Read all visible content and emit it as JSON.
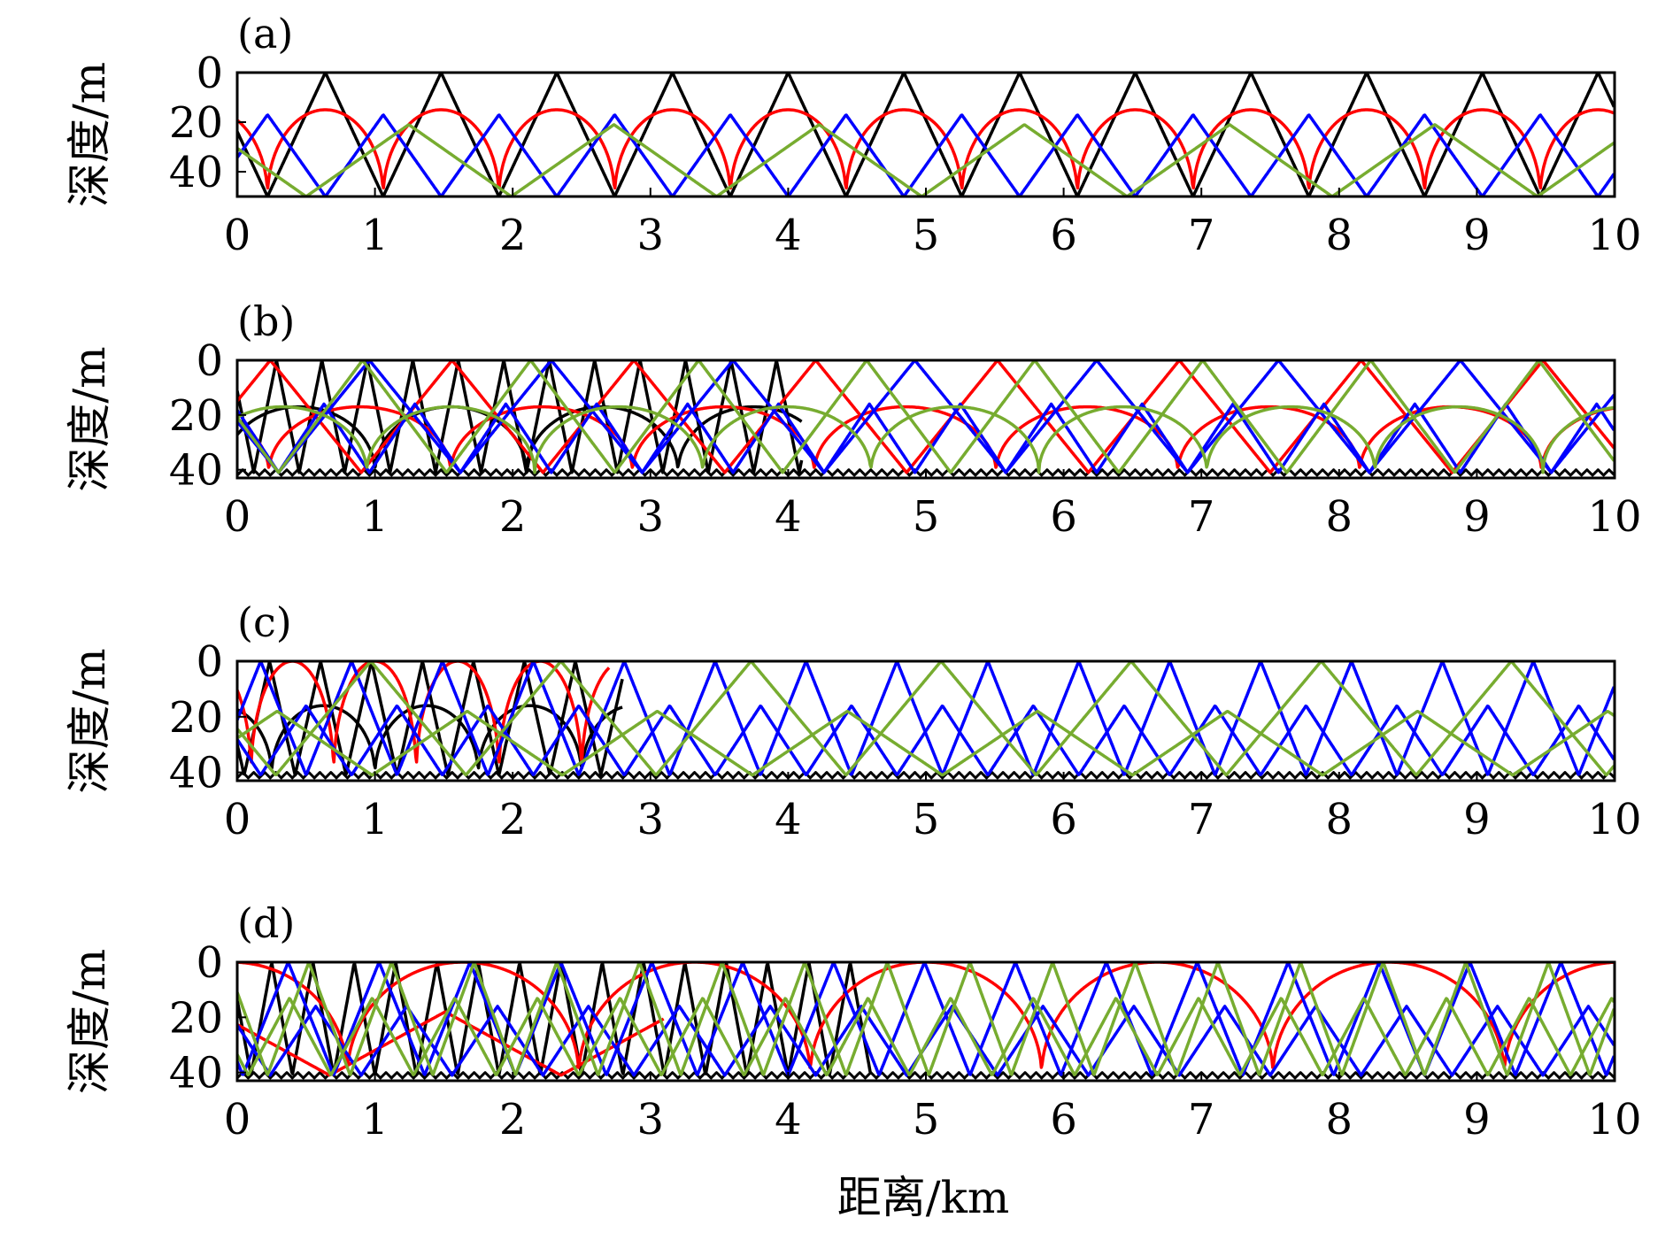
{
  "figure": {
    "xlabel": "距离/km",
    "colors": {
      "black": "#000000",
      "red": "#ff0000",
      "blue": "#0000ff",
      "green": "#77ac30"
    }
  },
  "chart_data": [
    {
      "type": "line",
      "label": "(a)",
      "ylabel": "深度/m",
      "xlim": [
        0,
        10
      ],
      "ylim": [
        0,
        50
      ],
      "y_inverted": true,
      "xticks": [
        0,
        1,
        2,
        3,
        4,
        5,
        6,
        7,
        8,
        9,
        10
      ],
      "yticks": [
        0,
        20,
        40
      ],
      "series": [
        {
          "color": "black",
          "kind": "tri",
          "top": 0,
          "bottom": 50,
          "period": 0.84,
          "phase": 0.22
        },
        {
          "color": "red",
          "kind": "arc",
          "top": 15,
          "bottom": 50,
          "period": 0.84,
          "phase": 0.22
        },
        {
          "color": "blue",
          "kind": "tri",
          "top": 17,
          "bottom": 50,
          "period": 0.84,
          "phase": 0.64
        },
        {
          "color": "green",
          "kind": "tri",
          "top": 21,
          "bottom": 50,
          "period": 1.49,
          "phase": 0.5
        }
      ]
    },
    {
      "type": "line",
      "label": "(b)",
      "ylabel": "深度/m",
      "xlim": [
        0,
        10
      ],
      "ylim": [
        0,
        43
      ],
      "y_inverted": true,
      "xticks": [
        0,
        1,
        2,
        3,
        4,
        5,
        6,
        7,
        8,
        9,
        10
      ],
      "yticks": [
        0,
        20,
        40
      ],
      "series": [
        {
          "color": "black",
          "kind": "tri",
          "top": 0,
          "bottom": 41,
          "period": 0.33,
          "phase": 0.12,
          "xmax": 4.1
        },
        {
          "color": "black",
          "kind": "arc",
          "top": 17,
          "bottom": 41,
          "period": 1.1,
          "phase": 1.0,
          "xmax": 4.1
        },
        {
          "color": "black",
          "kind": "zigzag",
          "top": 40,
          "bottom": 42,
          "period": 0.08,
          "phase": 0
        },
        {
          "color": "red",
          "kind": "tri",
          "top": 0,
          "bottom": 41,
          "period": 1.32,
          "phase": 0.9
        },
        {
          "color": "red",
          "kind": "arc",
          "top": 17,
          "bottom": 41,
          "period": 1.32,
          "phase": 1.55
        },
        {
          "color": "blue",
          "kind": "tri",
          "top": 0,
          "bottom": 41,
          "period": 1.32,
          "phase": 0.3
        },
        {
          "color": "blue",
          "kind": "tri",
          "top": 16,
          "bottom": 41,
          "period": 0.66,
          "phase": 0.96
        },
        {
          "color": "green",
          "kind": "tri",
          "top": 0,
          "bottom": 41,
          "period": 1.22,
          "phase": 0.3
        },
        {
          "color": "green",
          "kind": "arc",
          "top": 17,
          "bottom": 41,
          "period": 1.22,
          "phase": 0.94
        }
      ]
    },
    {
      "type": "line",
      "label": "(c)",
      "ylabel": "深度/m",
      "xlim": [
        0,
        10
      ],
      "ylim": [
        0,
        43
      ],
      "y_inverted": true,
      "xticks": [
        0,
        1,
        2,
        3,
        4,
        5,
        6,
        7,
        8,
        9,
        10
      ],
      "yticks": [
        0,
        20,
        40
      ],
      "series": [
        {
          "color": "black",
          "kind": "tri",
          "top": 0,
          "bottom": 41,
          "period": 0.37,
          "phase": 0.05,
          "xmax": 2.8
        },
        {
          "color": "black",
          "kind": "arc",
          "top": 16,
          "bottom": 41,
          "period": 0.75,
          "phase": 1.0,
          "xmax": 2.8
        },
        {
          "color": "black",
          "kind": "zigzag",
          "top": 40,
          "bottom": 42,
          "period": 0.08,
          "phase": 0
        },
        {
          "color": "red",
          "kind": "arc",
          "top": 0,
          "bottom": 41,
          "period": 0.6,
          "phase": 0.1,
          "xmax": 2.7
        },
        {
          "color": "blue",
          "kind": "tri",
          "top": 0,
          "bottom": 41,
          "period": 0.66,
          "phase": 0.5
        },
        {
          "color": "blue",
          "kind": "tri",
          "top": 16,
          "bottom": 41,
          "period": 0.66,
          "phase": 0.83
        },
        {
          "color": "green",
          "kind": "tri",
          "top": 0,
          "bottom": 41,
          "period": 1.38,
          "phase": 0.28
        },
        {
          "color": "green",
          "kind": "tri",
          "top": 18,
          "bottom": 41,
          "period": 1.38,
          "phase": 0.98
        }
      ]
    },
    {
      "type": "line",
      "label": "(d)",
      "ylabel": "深度/m",
      "xlim": [
        0,
        10
      ],
      "ylim": [
        0,
        43
      ],
      "y_inverted": true,
      "xticks": [
        0,
        1,
        2,
        3,
        4,
        5,
        6,
        7,
        8,
        9,
        10
      ],
      "yticks": [
        0,
        20,
        40
      ],
      "series": [
        {
          "color": "black",
          "kind": "tri",
          "top": 0,
          "bottom": 41,
          "period": 0.3,
          "phase": 0.1,
          "xmax": 4.6
        },
        {
          "color": "black",
          "kind": "zigzag",
          "top": 40,
          "bottom": 42,
          "period": 0.08,
          "phase": 0
        },
        {
          "color": "red",
          "kind": "arc",
          "top": 0,
          "bottom": 41,
          "period": 1.68,
          "phase": 0.8
        },
        {
          "color": "red",
          "kind": "tri",
          "top": 18,
          "bottom": 41,
          "period": 1.68,
          "phase": 2.35,
          "xmax": 3.1
        },
        {
          "color": "blue",
          "kind": "tri",
          "top": 0,
          "bottom": 41,
          "period": 0.66,
          "phase": 0.7
        },
        {
          "color": "blue",
          "kind": "tri",
          "top": 16,
          "bottom": 41,
          "period": 0.66,
          "phase": 0.24
        },
        {
          "color": "green",
          "kind": "tri",
          "top": 0,
          "bottom": 41,
          "period": 0.6,
          "phase": 1.42
        },
        {
          "color": "green",
          "kind": "tri",
          "top": 13,
          "bottom": 41,
          "period": 0.6,
          "phase": 0.68
        }
      ]
    }
  ]
}
